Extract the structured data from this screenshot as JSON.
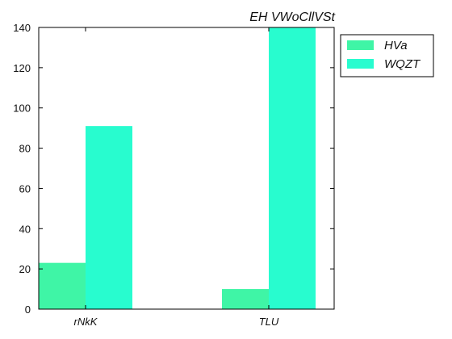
{
  "chart_data": {
    "type": "bar",
    "title": "EH VWoCllVSt",
    "xlabel": "",
    "ylabel": "",
    "categories": [
      "rNkK",
      "TLU"
    ],
    "series": [
      {
        "name": "HVa",
        "values": [
          23,
          10
        ],
        "color": "#3ff5a6"
      },
      {
        "name": "WQZT",
        "values": [
          91,
          141
        ],
        "color": "#28fccf"
      }
    ],
    "ylim": [
      0,
      140
    ],
    "yticks": [
      0,
      20,
      40,
      60,
      80,
      100,
      120,
      140
    ],
    "grid": false,
    "legend": "outside-top-right"
  }
}
